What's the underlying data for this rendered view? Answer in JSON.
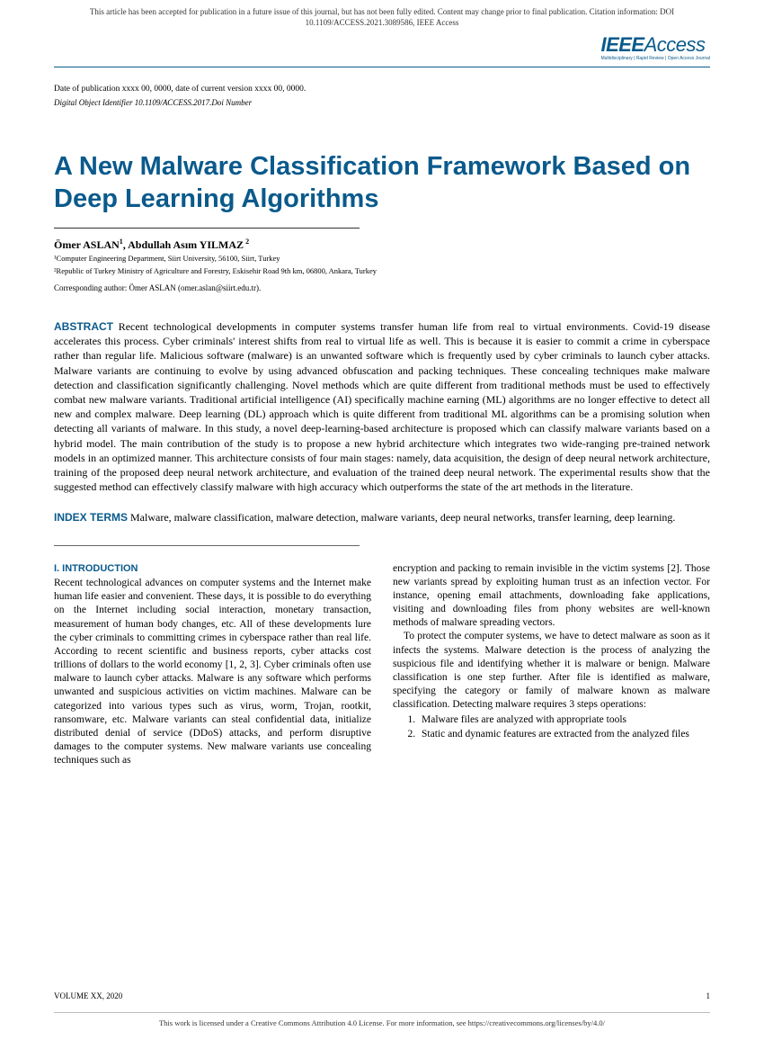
{
  "header": {
    "notice": "This article has been accepted for publication in a future issue of this journal, but has not been fully edited. Content may change prior to final publication. Citation information: DOI 10.1109/ACCESS.2021.3089586, IEEE Access",
    "logo_main": "IEEE",
    "logo_access": "Access",
    "logo_sub": "Multidisciplinary | Rapid Review | Open Access Journal"
  },
  "meta": {
    "pub_date": "Date of publication xxxx 00, 0000, date of current version xxxx 00, 0000.",
    "doi": "Digital Object Identifier 10.1109/ACCESS.2017.Doi Number"
  },
  "title": "A New Malware Classification Framework Based on Deep Learning Algorithms",
  "authors": {
    "a1_name": "Ömer ASLAN",
    "a1_sup": "1",
    "sep": ", ",
    "a2_name": "Abdullah Asım YILMAZ",
    "a2_sup": " 2"
  },
  "affiliations": {
    "l1": "¹Computer Engineering Department, Siirt  University, 56100, Siirt, Turkey",
    "l2": "²Republic of Turkey Ministry of Agriculture and Forestry, Eskisehir Road 9th km, 06800,  Ankara, Turkey"
  },
  "corresponding": "Corresponding author: Ömer ASLAN (omer.aslan@siirt.edu.tr).",
  "abstract": {
    "label": "ABSTRACT",
    "text": " Recent technological developments in computer systems transfer human life from real to virtual environments. Covid-19 disease accelerates this process. Cyber criminals' interest shifts from real to virtual life as well. This is because it is easier to commit a crime in cyberspace rather than regular life. Malicious software (malware) is an unwanted software which is frequently used by cyber criminals to launch cyber attacks. Malware variants are continuing to evolve by using advanced obfuscation and packing techniques. These concealing techniques make malware detection and classification significantly challenging. Novel methods which are quite different from traditional methods must be used to effectively combat new malware variants. Traditional artificial intelligence (AI) specifically machine earning (ML) algorithms are no longer effective to detect all new and complex malware. Deep learning (DL) approach which is quite different from traditional ML algorithms can be a promising solution when detecting all variants of malware. In this study, a novel deep-learning-based architecture is proposed which can classify malware variants based on a hybrid model. The main contribution of the study is to propose a new hybrid architecture which integrates two wide-ranging pre-trained network models in an optimized manner. This architecture consists of four main stages: namely, data acquisition, the design of deep neural network architecture, training of the proposed deep neural network architecture, and evaluation of the trained deep neural network. The experimental results show that the suggested method can effectively classify malware with high accuracy which outperforms the state of the art methods in the literature."
  },
  "index": {
    "label": "INDEX TERMS",
    "text": "  Malware, malware classification, malware detection, malware variants,  deep neural networks, transfer learning, deep learning."
  },
  "body": {
    "section_head": "I. INTRODUCTION",
    "col1_p1": "Recent technological advances on computer systems and the Internet make human life easier and convenient. These days, it is possible to do everything on the Internet including social interaction, monetary transaction, measurement of human body changes, etc. All of these developments lure the cyber criminals to committing crimes in cyberspace rather than real life. According to recent scientific and business reports, cyber attacks cost trillions of dollars to the world economy [1, 2, 3]. Cyber criminals often use malware to launch cyber attacks. Malware is any software which performs unwanted and suspicious activities on victim machines. Malware can be categorized into various types such as virus, worm, Trojan, rootkit, ransomware, etc. Malware variants can steal confidential data, initialize distributed denial of service (DDoS) attacks, and perform disruptive damages to the computer systems. New malware variants use concealing techniques such as",
    "col2_p1": "encryption and packing to remain invisible in the victim systems [2]. Those new variants spread by exploiting human trust as an infection vector. For instance, opening email attachments, downloading fake applications, visiting and downloading files from phony websites are well-known methods of malware spreading vectors.",
    "col2_p2": "To protect the computer systems, we have to detect malware as soon as it infects the systems. Malware detection is the process of analyzing the suspicious file and identifying whether it is malware or benign. Malware classification is one step further. After file is identified as malware, specifying the category or family of malware known as malware classification. Detecting malware requires 3 steps operations:",
    "col2_li1": "Malware files are analyzed with appropriate tools",
    "col2_li2": "Static and dynamic features are extracted from the analyzed files"
  },
  "footer": {
    "volume": "VOLUME XX, 2020",
    "page": "1",
    "license": "This work is licensed under a Creative Commons Attribution 4.0 License. For more information, see https://creativecommons.org/licenses/by/4.0/"
  },
  "colors": {
    "accent": "#0a5a8c",
    "text": "#000000",
    "background": "#ffffff"
  }
}
